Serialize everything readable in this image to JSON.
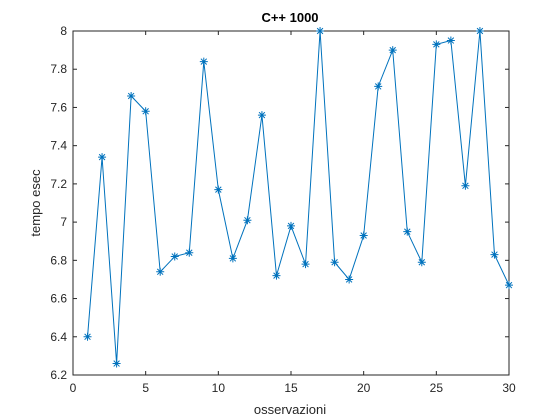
{
  "chart_data": {
    "type": "line",
    "title": "C++ 1000",
    "xlabel": "osservazioni",
    "ylabel": "tempo esec",
    "xlim": [
      0,
      30
    ],
    "ylim": [
      6.2,
      8
    ],
    "xticks": [
      0,
      5,
      10,
      15,
      20,
      25,
      30
    ],
    "yticks": [
      6.2,
      6.4,
      6.6,
      6.8,
      7,
      7.2,
      7.4,
      7.6,
      7.8,
      8
    ],
    "grid": false,
    "marker": "asterisk",
    "color": "#0072BD",
    "x": [
      1,
      2,
      3,
      4,
      5,
      6,
      7,
      8,
      9,
      10,
      11,
      12,
      13,
      14,
      15,
      16,
      17,
      18,
      19,
      20,
      21,
      22,
      23,
      24,
      25,
      26,
      27,
      28,
      29,
      30
    ],
    "y": [
      6.4,
      7.34,
      6.26,
      7.66,
      7.58,
      6.74,
      6.82,
      6.84,
      7.84,
      7.17,
      6.81,
      7.01,
      7.56,
      6.72,
      6.98,
      6.78,
      8.0,
      6.79,
      6.7,
      6.93,
      7.71,
      7.9,
      6.95,
      6.79,
      7.93,
      7.95,
      7.19,
      8.0,
      6.83,
      6.67
    ]
  }
}
